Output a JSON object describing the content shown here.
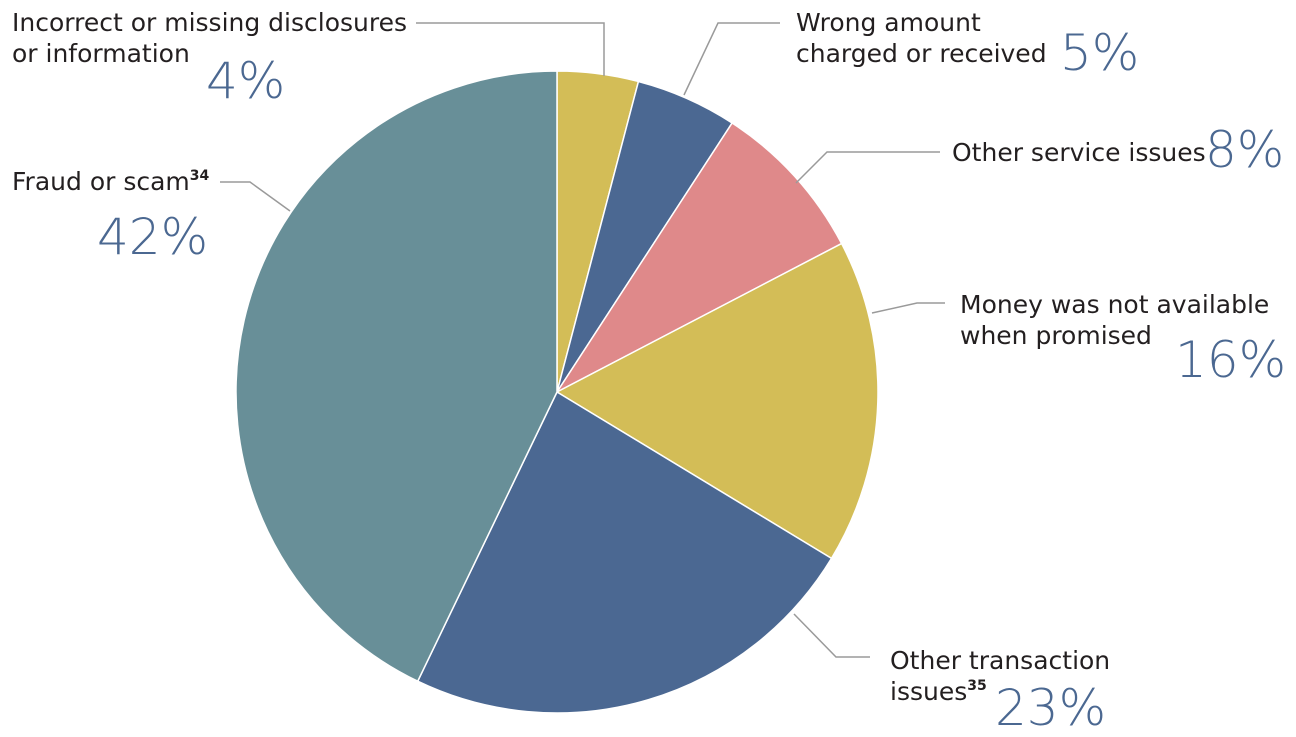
{
  "chart_data": {
    "type": "pie",
    "start_angle_deg": 0,
    "direction": "clockwise",
    "slices": [
      {
        "label": "Incorrect or missing disclosures or information",
        "value": 4,
        "value_label": "4%",
        "color": "#d3bd57"
      },
      {
        "label": "Wrong amount charged or received",
        "value": 5,
        "value_label": "5%",
        "color": "#4b6892"
      },
      {
        "label": "Other service issues",
        "value": 8,
        "value_label": "8%",
        "color": "#df898a"
      },
      {
        "label": "Money was not available when promised",
        "value": 16,
        "value_label": "16%",
        "color": "#d3bd57"
      },
      {
        "label": "Other transaction issues",
        "value": 23,
        "value_label": "23%",
        "footnote": "35",
        "color": "#4b6892"
      },
      {
        "label": "Fraud or scam",
        "value": 42,
        "value_label": "42%",
        "footnote": "34",
        "color": "#688f98"
      }
    ]
  },
  "labels": {
    "incorrect": {
      "line1": "Incorrect or missing disclosures",
      "line2": "or information",
      "pct": "4%"
    },
    "wrong": {
      "line1": "Wrong amount",
      "line2": "charged or received",
      "pct": "5%"
    },
    "other_service": {
      "line1": "Other service issues",
      "pct": "8%"
    },
    "money": {
      "line1": "Money was not available",
      "line2": "when promised",
      "pct": "16%"
    },
    "other_transaction": {
      "line1": "Other transaction",
      "line2": "issues",
      "sup": "35",
      "pct": "23%"
    },
    "fraud": {
      "line1": "Fraud or scam",
      "sup": "34",
      "pct": "42%"
    }
  },
  "colors": {
    "percent_text": "#4b6891",
    "leader_line": "#9a9a9a",
    "label_text": "#231f20"
  }
}
